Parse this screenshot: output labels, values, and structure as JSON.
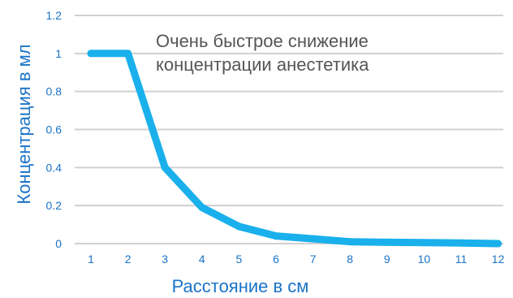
{
  "chart_data": {
    "type": "line",
    "title": "",
    "xlabel": "Расстояние в см",
    "ylabel": "Концентрация в мл",
    "x": [
      1,
      2,
      3,
      4,
      5,
      6,
      7,
      8,
      9,
      10,
      11,
      12
    ],
    "series": [
      {
        "values": [
          1.0,
          1.0,
          0.4,
          0.19,
          0.09,
          0.04,
          0.025,
          0.01,
          0.007,
          0.005,
          0.003,
          0.0
        ]
      }
    ],
    "xticks": [
      "1",
      "2",
      "3",
      "4",
      "5",
      "6",
      "7",
      "8",
      "9",
      "10",
      "11",
      "12"
    ],
    "yticks": [
      "0",
      "0.2",
      "0.4",
      "0.6",
      "0.8",
      "1",
      "1.2"
    ],
    "ylim": [
      0,
      1.2
    ],
    "grid": "horizontal",
    "legend": "none",
    "annotation": {
      "line1": "Очень быстрое снижение",
      "line2": "концентрации анестетика"
    },
    "colors": {
      "series": "#1ab0ec",
      "grid": "#d0d0d0",
      "axis_text": "#1a73c7",
      "annotation_text": "#555555"
    }
  }
}
